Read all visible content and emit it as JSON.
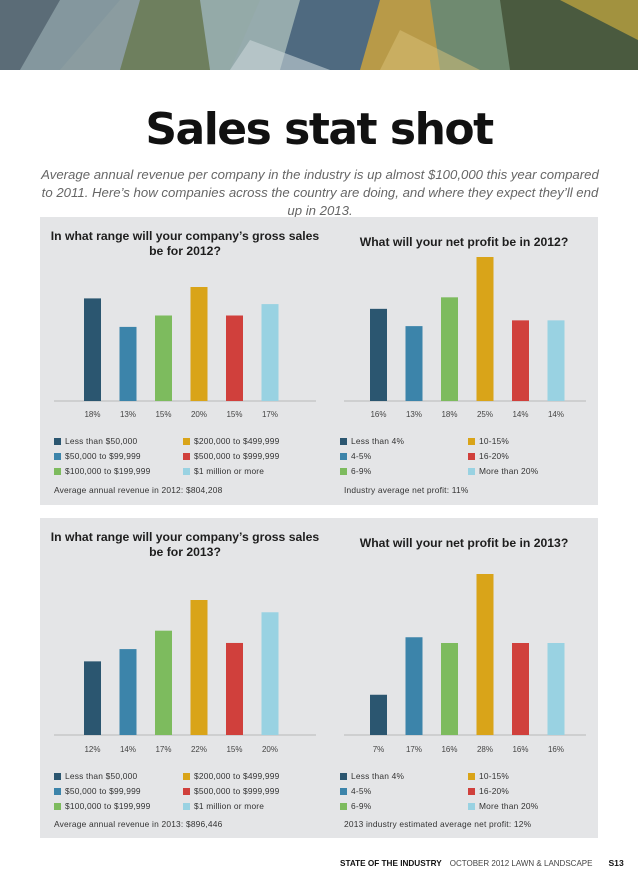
{
  "page": {
    "title": "Sales stat shot",
    "subtitle": "Average annual revenue per company in the industry is up almost $100,000 this year compared to 2011. Here’s how companies across the country are doing, and where they expect they’ll end up in 2013.",
    "footer": {
      "section": "STATE OF THE INDUSTRY",
      "issue": "OCTOBER 2012   LAWN & LANDSCAPE",
      "page_number": "S13"
    }
  },
  "colors": {
    "navy": "#2b5670",
    "blue": "#3c84aa",
    "green": "#7dbb5e",
    "gold": "#d9a419",
    "red": "#d0403c",
    "lightblue": "#99d2e2",
    "panel": "#e4e5e7"
  },
  "chart_data": [
    {
      "type": "bar",
      "title": "In what range will your company’s gross sales be for 2012?",
      "categories": [
        "Less than $50,000",
        "$50,000 to $99,999",
        "$100,000 to $199,999",
        "$200,000 to $499,999",
        "$500,000 to $999,999",
        "$1 million or more"
      ],
      "values": [
        18,
        13,
        15,
        20,
        15,
        17
      ],
      "value_labels": [
        "18%",
        "13%",
        "15%",
        "20%",
        "15%",
        "17%"
      ],
      "colors": [
        "#2b5670",
        "#3c84aa",
        "#7dbb5e",
        "#d9a419",
        "#d0403c",
        "#99d2e2"
      ],
      "legend_order": [
        0,
        3,
        1,
        4,
        2,
        5
      ],
      "footnote": "Average annual revenue in 2012: $804,208",
      "ylim": [
        0,
        20
      ]
    },
    {
      "type": "bar",
      "title": "What will your net profit be in 2012?",
      "categories": [
        "Less than 4%",
        "4-5%",
        "6-9%",
        "10-15%",
        "16-20%",
        "More than 20%"
      ],
      "values": [
        16,
        13,
        18,
        25,
        14,
        14
      ],
      "value_labels": [
        "16%",
        "13%",
        "18%",
        "25%",
        "14%",
        "14%"
      ],
      "colors": [
        "#2b5670",
        "#3c84aa",
        "#7dbb5e",
        "#d9a419",
        "#d0403c",
        "#99d2e2"
      ],
      "legend_order": [
        0,
        3,
        1,
        4,
        2,
        5
      ],
      "footnote": "Industry average net profit: 11%",
      "ylim": [
        0,
        25
      ]
    },
    {
      "type": "bar",
      "title": "In what range will your company’s gross sales be for 2013?",
      "categories": [
        "Less than $50,000",
        "$50,000 to $99,999",
        "$100,000 to $199,999",
        "$200,000 to $499,999",
        "$500,000 to $999,999",
        "$1 million or more"
      ],
      "values": [
        12,
        14,
        17,
        22,
        15,
        20
      ],
      "value_labels": [
        "12%",
        "14%",
        "17%",
        "22%",
        "15%",
        "20%"
      ],
      "colors": [
        "#2b5670",
        "#3c84aa",
        "#7dbb5e",
        "#d9a419",
        "#d0403c",
        "#99d2e2"
      ],
      "legend_order": [
        0,
        3,
        1,
        4,
        2,
        5
      ],
      "footnote": "Average annual revenue in 2013: $896,446",
      "ylim": [
        0,
        22
      ]
    },
    {
      "type": "bar",
      "title": "What will your net profit be in 2013?",
      "categories": [
        "Less than 4%",
        "4-5%",
        "6-9%",
        "10-15%",
        "16-20%",
        "More than 20%"
      ],
      "values": [
        7,
        17,
        16,
        28,
        16,
        16
      ],
      "value_labels": [
        "7%",
        "17%",
        "16%",
        "28%",
        "16%",
        "16%"
      ],
      "colors": [
        "#2b5670",
        "#3c84aa",
        "#7dbb5e",
        "#d9a419",
        "#d0403c",
        "#99d2e2"
      ],
      "legend_order": [
        0,
        3,
        1,
        4,
        2,
        5
      ],
      "footnote": "2013 industry estimated average net profit: 12%",
      "ylim": [
        0,
        28
      ]
    }
  ]
}
